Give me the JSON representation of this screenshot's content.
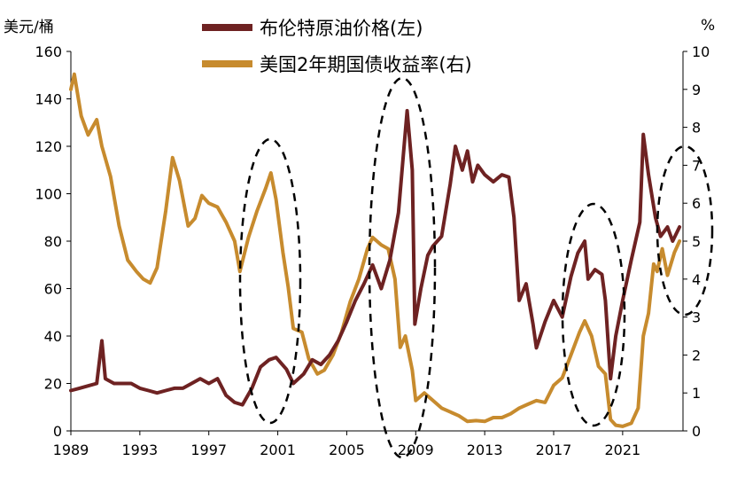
{
  "chart_data": {
    "type": "line",
    "left_axis_unit": "美元/桶",
    "right_axis_unit": "%",
    "x_range": [
      1989,
      2024.5
    ],
    "y_left_range": [
      0,
      160
    ],
    "y_right_range": [
      0,
      10
    ],
    "x_tick_labels": [
      "1989",
      "1993",
      "1997",
      "2001",
      "2005",
      "2009",
      "2013",
      "2017",
      "2021"
    ],
    "y_left_tick_labels": [
      "0",
      "20",
      "40",
      "60",
      "80",
      "100",
      "120",
      "140",
      "160"
    ],
    "y_right_tick_labels": [
      "0",
      "1",
      "2",
      "3",
      "4",
      "5",
      "6",
      "7",
      "8",
      "9",
      "10"
    ],
    "grid": false,
    "legend_position": "top-center",
    "series": [
      {
        "name": "布伦特原油价格(左)",
        "axis": "left",
        "color": "#6e2222",
        "x": [
          1989.0,
          1989.5,
          1990.0,
          1990.5,
          1990.8,
          1991.0,
          1991.5,
          1992.0,
          1992.5,
          1993.0,
          1993.5,
          1994.0,
          1994.5,
          1995.0,
          1995.5,
          1996.0,
          1996.5,
          1997.0,
          1997.5,
          1998.0,
          1998.5,
          1998.95,
          1999.5,
          2000.0,
          2000.5,
          2000.9,
          2001.5,
          2001.9,
          2002.5,
          2003.0,
          2003.5,
          2004.0,
          2004.5,
          2005.0,
          2005.5,
          2006.0,
          2006.5,
          2007.0,
          2007.5,
          2008.0,
          2008.3,
          2008.5,
          2008.8,
          2008.95,
          2009.3,
          2009.7,
          2010.0,
          2010.5,
          2011.0,
          2011.3,
          2011.7,
          2012.0,
          2012.3,
          2012.6,
          2013.0,
          2013.5,
          2014.0,
          2014.4,
          2014.7,
          2015.0,
          2015.4,
          2015.8,
          2016.0,
          2016.5,
          2017.0,
          2017.5,
          2018.0,
          2018.4,
          2018.8,
          2019.0,
          2019.4,
          2019.8,
          2020.0,
          2020.3,
          2020.6,
          2021.0,
          2021.5,
          2022.0,
          2022.2,
          2022.5,
          2022.9,
          2023.2,
          2023.6,
          2023.9,
          2024.3
        ],
        "values": [
          17,
          18,
          19,
          20,
          38,
          22,
          20,
          20,
          20,
          18,
          17,
          16,
          17,
          18,
          18,
          20,
          22,
          20,
          22,
          15,
          12,
          11,
          18,
          27,
          30,
          31,
          26,
          20,
          24,
          30,
          28,
          32,
          38,
          46,
          55,
          62,
          70,
          60,
          72,
          92,
          118,
          135,
          110,
          45,
          60,
          74,
          78,
          82,
          104,
          120,
          110,
          118,
          105,
          112,
          108,
          105,
          108,
          107,
          90,
          55,
          62,
          45,
          35,
          46,
          55,
          48,
          65,
          75,
          80,
          64,
          68,
          66,
          55,
          22,
          40,
          55,
          72,
          88,
          125,
          108,
          90,
          82,
          86,
          80,
          86
        ]
      },
      {
        "name": "美国2年期国债收益率(右)",
        "axis": "right",
        "color": "#c78b2e",
        "x": [
          1989.0,
          1989.2,
          1989.6,
          1990.0,
          1990.5,
          1990.8,
          1991.3,
          1991.8,
          1992.3,
          1992.8,
          1993.2,
          1993.6,
          1994.0,
          1994.5,
          1994.9,
          1995.3,
          1995.8,
          1996.2,
          1996.6,
          1997.0,
          1997.5,
          1998.0,
          1998.5,
          1998.8,
          1999.3,
          1999.8,
          2000.3,
          2000.6,
          2000.9,
          2001.3,
          2001.6,
          2001.9,
          2002.4,
          2002.8,
          2003.3,
          2003.7,
          2004.2,
          2004.7,
          2005.2,
          2005.7,
          2006.2,
          2006.5,
          2007.0,
          2007.4,
          2007.8,
          2008.1,
          2008.4,
          2008.8,
          2009.0,
          2009.5,
          2010.0,
          2010.5,
          2011.0,
          2011.5,
          2012.0,
          2012.5,
          2013.0,
          2013.5,
          2014.0,
          2014.5,
          2015.0,
          2015.5,
          2016.0,
          2016.5,
          2017.0,
          2017.5,
          2018.0,
          2018.5,
          2018.8,
          2019.2,
          2019.6,
          2020.0,
          2020.3,
          2020.6,
          2021.0,
          2021.5,
          2021.9,
          2022.2,
          2022.5,
          2022.8,
          2023.0,
          2023.3,
          2023.6,
          2024.0,
          2024.3
        ],
        "values": [
          9.0,
          9.4,
          8.3,
          7.8,
          8.2,
          7.5,
          6.7,
          5.4,
          4.5,
          4.2,
          4.0,
          3.9,
          4.3,
          5.8,
          7.2,
          6.6,
          5.4,
          5.6,
          6.2,
          6.0,
          5.9,
          5.5,
          5.0,
          4.2,
          5.1,
          5.8,
          6.4,
          6.8,
          6.1,
          4.7,
          3.8,
          2.7,
          2.6,
          1.9,
          1.5,
          1.6,
          2.0,
          2.6,
          3.4,
          4.0,
          4.8,
          5.1,
          4.9,
          4.8,
          4.0,
          2.2,
          2.5,
          1.6,
          0.8,
          1.0,
          0.8,
          0.6,
          0.5,
          0.4,
          0.25,
          0.27,
          0.25,
          0.35,
          0.35,
          0.45,
          0.6,
          0.7,
          0.8,
          0.75,
          1.2,
          1.4,
          2.0,
          2.6,
          2.9,
          2.5,
          1.7,
          1.5,
          0.3,
          0.15,
          0.12,
          0.2,
          0.6,
          2.5,
          3.1,
          4.4,
          4.2,
          4.8,
          4.1,
          4.7,
          5.0
        ]
      }
    ]
  }
}
